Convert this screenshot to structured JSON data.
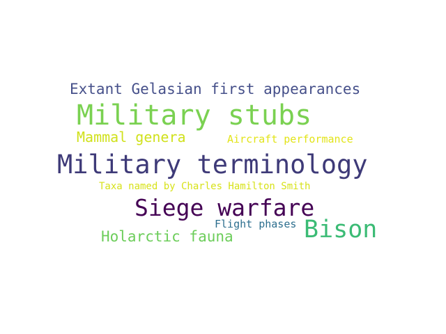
{
  "words": [
    {
      "text": "Extant Gelasian first appearances",
      "color": "#46508a"
    },
    {
      "text": "Military stubs",
      "color": "#7ad151"
    },
    {
      "text": "Mammal genera",
      "color": "#d0e11c"
    },
    {
      "text": "Aircraft performance",
      "color": "#e2e418"
    },
    {
      "text": "Military terminology",
      "color": "#3e3a78"
    },
    {
      "text": "Taxa named by Charles Hamilton Smith",
      "color": "#d7e21a"
    },
    {
      "text": "Siege warfare",
      "color": "#440154"
    },
    {
      "text": "Bison",
      "color": "#3bbb75"
    },
    {
      "text": "Flight phases",
      "color": "#2c6e8e"
    },
    {
      "text": "Holarctic fauna",
      "color": "#6ccd5a"
    }
  ]
}
